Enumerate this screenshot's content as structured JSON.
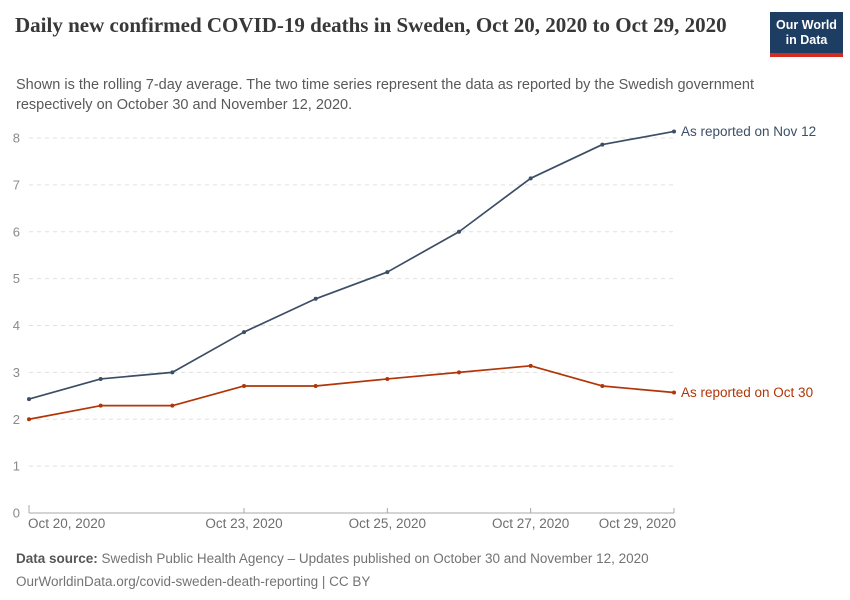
{
  "header": {
    "title": "Daily new confirmed COVID-19 deaths in Sweden, Oct 20, 2020 to Oct 29, 2020",
    "subtitle": "Shown is the rolling 7-day average. The two time series represent the data as reported by the Swedish government respectively on October 30 and November 12, 2020.",
    "logo": {
      "line1": "Our World",
      "line2": "in Data",
      "bg_color": "#1d3d63",
      "stripe_color": "#d42b21"
    }
  },
  "chart_data": {
    "type": "line",
    "title": "Daily new confirmed COVID-19 deaths in Sweden, Oct 20, 2020 to Oct 29, 2020",
    "subtitle": "Shown is the rolling 7-day average.",
    "x": [
      "Oct 20, 2020",
      "Oct 21, 2020",
      "Oct 22, 2020",
      "Oct 23, 2020",
      "Oct 24, 2020",
      "Oct 25, 2020",
      "Oct 26, 2020",
      "Oct 27, 2020",
      "Oct 28, 2020",
      "Oct 29, 2020"
    ],
    "series": [
      {
        "name": "As reported on Nov 12",
        "color": "#3C4E66",
        "values": [
          2.43,
          2.86,
          3.0,
          3.86,
          4.57,
          5.14,
          6.0,
          7.14,
          7.86,
          8.14
        ]
      },
      {
        "name": "As reported on Oct 30",
        "color": "#B13507",
        "values": [
          2.0,
          2.29,
          2.29,
          2.71,
          2.71,
          2.86,
          3.0,
          3.14,
          2.71,
          2.57
        ]
      }
    ],
    "xlabel": "",
    "ylabel": "",
    "ylim": [
      0,
      8.2
    ],
    "y_ticks": [
      0,
      1,
      2,
      3,
      4,
      5,
      6,
      7,
      8
    ],
    "x_ticks": [
      {
        "index": 0,
        "label": "Oct 20, 2020",
        "align": "start"
      },
      {
        "index": 3,
        "label": "Oct 23, 2020",
        "align": "middle"
      },
      {
        "index": 5,
        "label": "Oct 25, 2020",
        "align": "middle"
      },
      {
        "index": 7,
        "label": "Oct 27, 2020",
        "align": "middle"
      },
      {
        "index": 9,
        "label": "Oct 29, 2020",
        "align": "end"
      }
    ],
    "grid": "horizontal-dashed",
    "legend": "line-end-labels",
    "colors": {
      "gridline": "#e0e0e0",
      "axis": "#a8a8a8",
      "y_tick_label": "#8a8a8a",
      "x_tick_label": "#6e6e6e"
    }
  },
  "footer": {
    "source_label": "Data source:",
    "source_text": "Swedish Public Health Agency – Updates published on October 30 and November 12, 2020",
    "permalink": "OurWorldinData.org/covid-sweden-death-reporting | CC BY"
  }
}
